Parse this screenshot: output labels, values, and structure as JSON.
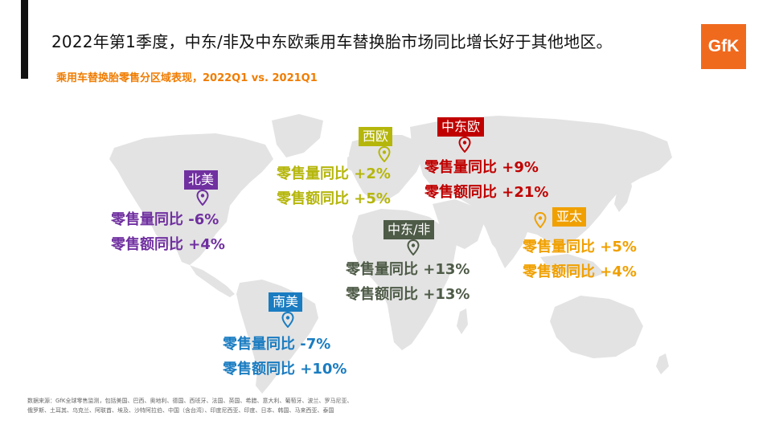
{
  "header": {
    "title": "2022年第1季度，中东/非及中东欧乘用车替换胎市场同比增长好于其他地区。",
    "subtitle": "乘用车替换胎零售分区域表现，2022Q1 vs. 2021Q1",
    "logo_text": "GfK"
  },
  "regions": [
    {
      "key": "north_america",
      "name": "北美",
      "color": "#7030a0",
      "volume_label": "零售量同比",
      "volume_value": "-6%",
      "value_label": "零售额同比",
      "value_value": "+4%"
    },
    {
      "key": "western_europe",
      "name": "西欧",
      "color": "#b5b60b",
      "volume_label": "零售量同比",
      "volume_value": "+2%",
      "value_label": "零售额同比",
      "value_value": "+5%"
    },
    {
      "key": "central_eastern_europe",
      "name": "中东欧",
      "color": "#c00000",
      "volume_label": "零售量同比",
      "volume_value": "+9%",
      "value_label": "零售额同比",
      "value_value": "+21%"
    },
    {
      "key": "middle_east_africa",
      "name": "中东/非",
      "color": "#4e5b47",
      "volume_label": "零售量同比",
      "volume_value": "+13%",
      "value_label": "零售额同比",
      "value_value": "+13%"
    },
    {
      "key": "asia_pacific",
      "name": "亚太",
      "color": "#f0a000",
      "volume_label": "零售量同比",
      "volume_value": "+5%",
      "value_label": "零售额同比",
      "value_value": "+4%"
    },
    {
      "key": "south_america",
      "name": "南美",
      "color": "#1a7cc1",
      "volume_label": "零售量同比",
      "volume_value": "-7%",
      "value_label": "零售额同比",
      "value_value": "+10%"
    }
  ],
  "footnote": {
    "line1": "数据来源：GfK全球零售监测，包括美国、巴西、奥地利、德国、西班牙、法国、英国、希腊、意大利、葡萄牙、波兰、罗马尼亚、",
    "line2": "俄罗斯、土耳其、乌克兰、阿联酋、埃及、沙特阿拉伯、中国（含台湾）、印度尼西亚、印度、日本、韩国、马来西亚、泰国"
  }
}
